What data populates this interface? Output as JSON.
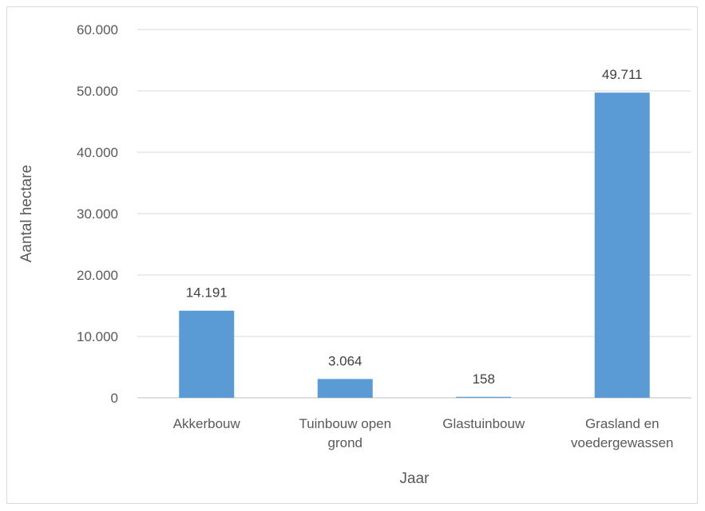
{
  "chart_data": {
    "type": "bar",
    "categories": [
      [
        "Akkerbouw"
      ],
      [
        "Tuinbouw open",
        "grond"
      ],
      [
        "Glastuinbouw"
      ],
      [
        "Grasland en",
        "voedergewassen"
      ]
    ],
    "values": [
      14191,
      3064,
      158,
      49711
    ],
    "data_labels": [
      "14.191",
      "3.064",
      "158",
      "49.711"
    ],
    "title": "",
    "xlabel": "Jaar",
    "ylabel": "Aantal hectare",
    "ylim": [
      0,
      60000
    ],
    "yticks": [
      {
        "value": 0,
        "label": "0"
      },
      {
        "value": 10000,
        "label": "10.000"
      },
      {
        "value": 20000,
        "label": "20.000"
      },
      {
        "value": 30000,
        "label": "30.000"
      },
      {
        "value": 40000,
        "label": "40.000"
      },
      {
        "value": 50000,
        "label": "50.000"
      },
      {
        "value": 60000,
        "label": "60.000"
      }
    ],
    "grid": true,
    "legend": "none",
    "colors": {
      "bar": "#5b9bd5",
      "grid": "#d9d9d9",
      "axis": "#bfbfbf"
    }
  }
}
